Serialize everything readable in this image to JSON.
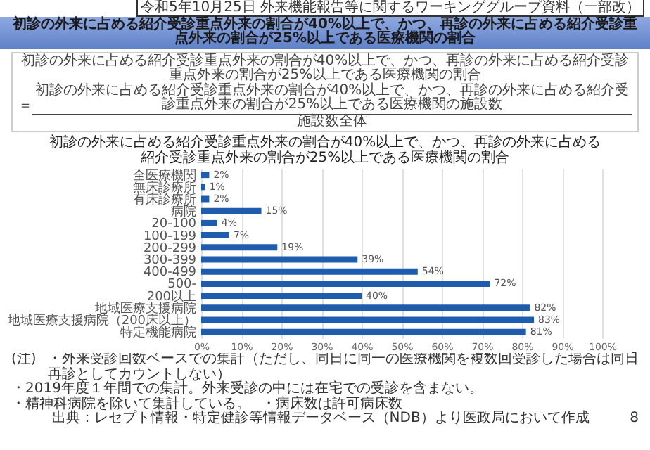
{
  "chart_data": {
    "type": "bar",
    "orientation": "horizontal",
    "title": "初診の外来に占める紹介受診重点外来の割合が40%以上で、かつ、再診の外来に占める紹介受診重点外来の割合が25%以上である医療機関の割合",
    "subtitle": "初診の外来に占める紹介受診重点外来の割合が40%以上で、かつ、再診の外来に占める紹介受診重点外来の割合が25%以上である医療機関の割合",
    "categories": [
      "全医療機関",
      "無床診療所",
      "有床診療所",
      "病院",
      "20-100",
      "100-199",
      "200-299",
      "300-399",
      "400-499",
      "500-",
      "200以上",
      "地域医療支援病院",
      "地域医療支援病院（200床以上）",
      "特定機能病院"
    ],
    "series": [
      {
        "color": "#1f5cae",
        "values": [
          2,
          1,
          2,
          15,
          4,
          7,
          19,
          39,
          54,
          72,
          40,
          82,
          83,
          81
        ],
        "value_labels": [
          "2%",
          "1%",
          "2%",
          "15%",
          "4%",
          "7%",
          "19%",
          "39%",
          "54%",
          "72%",
          "40%",
          "82%",
          "83%",
          "81%"
        ]
      }
    ],
    "xlim": [
      0,
      100
    ],
    "xticks": [
      {
        "value": 0,
        "label": "0%"
      },
      {
        "value": 10,
        "label": "10%"
      },
      {
        "value": 20,
        "label": "20%"
      },
      {
        "value": 30,
        "label": "30%"
      },
      {
        "value": 40,
        "label": "40%"
      },
      {
        "value": 50,
        "label": "50%"
      },
      {
        "value": 60,
        "label": "60%"
      },
      {
        "value": 70,
        "label": "70%"
      },
      {
        "value": 80,
        "label": "80%"
      },
      {
        "value": 90,
        "label": "90%"
      },
      {
        "value": 100,
        "label": "100%"
      }
    ],
    "grid": "x",
    "annotations": [
      "令和5年10月25日 外来機能報告等に関するワーキンググループ資料（一部改）",
      "初診の外来に占める紹介受診重点外来の割合が40%以上で、かつ、再診の外来に占める紹介受診重点外来の割合が25%以上である医療機関の割合",
      "初診の外来に占める紹介受診重点外来の割合が40%以上で、かつ、再診の外来に占める紹介受診重点外来の割合が25%以上である医療機関の施設数",
      "施設数全体",
      "(注)",
      "・外来受診回数ベースでの集計（ただし、同日に同一の医療機関を複数回受診した場合は同日再診としてカウントしない）",
      "・2019年度１年間での集計。外来受診の中には在宅での受診を含まない。",
      "・精神科病院を除いて集計している。",
      "・病床数は許可病床数",
      "出典：レセプト情報・特定健診等情報データベース（NDB）より医政局において作成",
      "8",
      "＝"
    ]
  }
}
